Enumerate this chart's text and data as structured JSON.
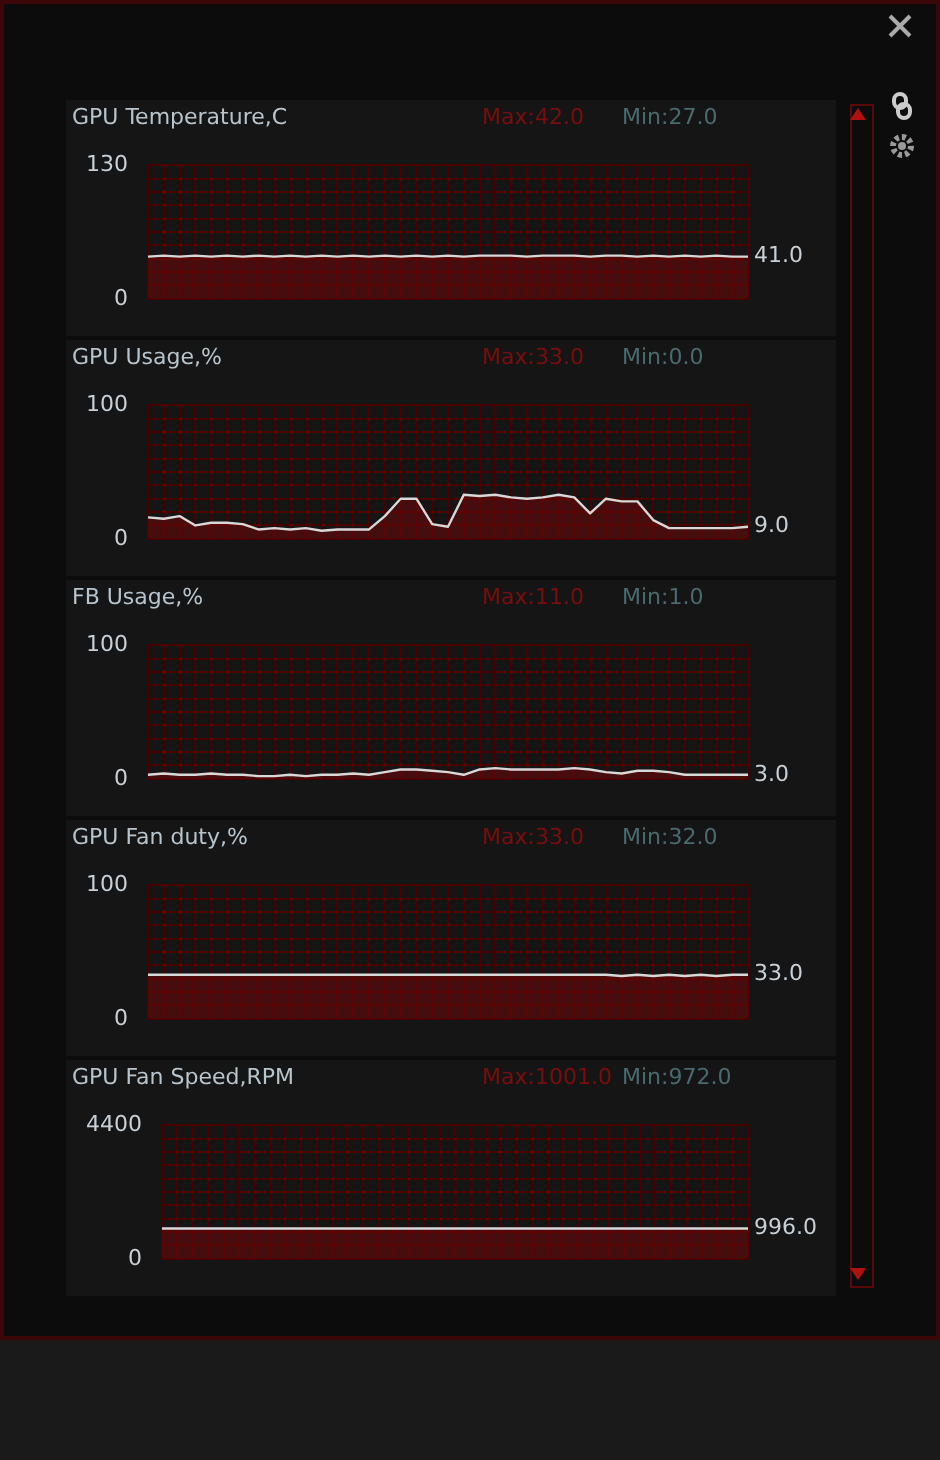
{
  "chart_data": [
    {
      "type": "area",
      "title": "GPU Temperature,C",
      "annotations": [
        "Max:42.0",
        "Min:27.0",
        "41.0"
      ],
      "categories": [
        null,
        null,
        null,
        null,
        null,
        null,
        null,
        null,
        null,
        null,
        null,
        null,
        null,
        null,
        null,
        null,
        null,
        null,
        null,
        null,
        null,
        null,
        null,
        null,
        null,
        null,
        null,
        null,
        null,
        null,
        null,
        null,
        null,
        null,
        null,
        null,
        null,
        null,
        null
      ],
      "series": [
        {
          "color": "#d8d8d8",
          "values": [
            41,
            42,
            41,
            42,
            41,
            42,
            41,
            42,
            41,
            42,
            41,
            42,
            41,
            42,
            41,
            42,
            41,
            42,
            41,
            42,
            41,
            42,
            42,
            42,
            41,
            42,
            42,
            42,
            41,
            42,
            42,
            41,
            42,
            41,
            42,
            41,
            42,
            41,
            41
          ]
        }
      ],
      "ylim": [
        0,
        130
      ],
      "yticks": [
        0,
        {
          "value": 13,
          "label": null
        },
        {
          "value": 26,
          "label": null
        },
        {
          "value": 39,
          "label": null
        },
        {
          "value": 52,
          "label": null
        },
        {
          "value": 65,
          "label": null
        },
        {
          "value": 78,
          "label": null
        },
        {
          "value": 91,
          "label": null
        },
        {
          "value": 104,
          "label": null
        },
        {
          "value": 117,
          "label": null
        },
        130
      ],
      "grid": true,
      "tick_labels": "y"
    },
    {
      "type": "area",
      "title": "GPU Usage,%",
      "annotations": [
        "Max:33.0",
        "Min:0.0",
        "9.0"
      ],
      "categories": [
        null,
        null,
        null,
        null,
        null,
        null,
        null,
        null,
        null,
        null,
        null,
        null,
        null,
        null,
        null,
        null,
        null,
        null,
        null,
        null,
        null,
        null,
        null,
        null,
        null,
        null,
        null,
        null,
        null,
        null,
        null,
        null,
        null,
        null,
        null,
        null,
        null,
        null,
        null
      ],
      "series": [
        {
          "color": "#d8d8d8",
          "values": [
            16,
            15,
            17,
            10,
            12,
            12,
            11,
            7,
            8,
            7,
            8,
            6,
            7,
            7,
            7,
            17,
            30,
            30,
            11,
            9,
            33,
            32,
            33,
            31,
            30,
            31,
            33,
            31,
            19,
            30,
            28,
            28,
            14,
            8,
            8,
            8,
            8,
            8,
            9
          ]
        }
      ],
      "ylim": [
        0,
        100
      ],
      "yticks": [
        0,
        {
          "value": 10,
          "label": null
        },
        {
          "value": 20,
          "label": null
        },
        {
          "value": 30,
          "label": null
        },
        {
          "value": 40,
          "label": null
        },
        {
          "value": 50,
          "label": null
        },
        {
          "value": 60,
          "label": null
        },
        {
          "value": 70,
          "label": null
        },
        {
          "value": 80,
          "label": null
        },
        {
          "value": 90,
          "label": null
        },
        100
      ],
      "grid": true,
      "tick_labels": "y"
    },
    {
      "type": "area",
      "title": "FB Usage,%",
      "annotations": [
        "Max:11.0",
        "Min:1.0",
        "3.0"
      ],
      "categories": [
        null,
        null,
        null,
        null,
        null,
        null,
        null,
        null,
        null,
        null,
        null,
        null,
        null,
        null,
        null,
        null,
        null,
        null,
        null,
        null,
        null,
        null,
        null,
        null,
        null,
        null,
        null,
        null,
        null,
        null,
        null,
        null,
        null,
        null,
        null,
        null,
        null,
        null,
        null
      ],
      "series": [
        {
          "color": "#d8d8d8",
          "values": [
            3,
            4,
            3,
            3,
            4,
            3,
            3,
            2,
            2,
            3,
            2,
            3,
            3,
            4,
            3,
            5,
            7,
            7,
            6,
            5,
            3,
            7,
            8,
            7,
            7,
            7,
            7,
            8,
            7,
            5,
            4,
            6,
            6,
            5,
            3,
            3,
            3,
            3,
            3
          ]
        }
      ],
      "ylim": [
        0,
        100
      ],
      "yticks": [
        0,
        {
          "value": 10,
          "label": null
        },
        {
          "value": 20,
          "label": null
        },
        {
          "value": 30,
          "label": null
        },
        {
          "value": 40,
          "label": null
        },
        {
          "value": 50,
          "label": null
        },
        {
          "value": 60,
          "label": null
        },
        {
          "value": 70,
          "label": null
        },
        {
          "value": 80,
          "label": null
        },
        {
          "value": 90,
          "label": null
        },
        100
      ],
      "grid": true,
      "tick_labels": "y"
    },
    {
      "type": "area",
      "title": "GPU Fan duty,%",
      "annotations": [
        "Max:33.0",
        "Min:32.0",
        "33.0"
      ],
      "categories": [
        null,
        null,
        null,
        null,
        null,
        null,
        null,
        null,
        null,
        null,
        null,
        null,
        null,
        null,
        null,
        null,
        null,
        null,
        null,
        null,
        null,
        null,
        null,
        null,
        null,
        null,
        null,
        null,
        null,
        null,
        null,
        null,
        null,
        null,
        null,
        null,
        null,
        null,
        null
      ],
      "series": [
        {
          "color": "#d8d8d8",
          "values": [
            33,
            33,
            33,
            33,
            33,
            33,
            33,
            33,
            33,
            33,
            33,
            33,
            33,
            33,
            33,
            33,
            33,
            33,
            33,
            33,
            33,
            33,
            33,
            33,
            33,
            33,
            33,
            33,
            33,
            33,
            32,
            33,
            32,
            33,
            32,
            33,
            32,
            33,
            33
          ]
        }
      ],
      "ylim": [
        0,
        100
      ],
      "yticks": [
        0,
        {
          "value": 10,
          "label": null
        },
        {
          "value": 20,
          "label": null
        },
        {
          "value": 30,
          "label": null
        },
        {
          "value": 40,
          "label": null
        },
        {
          "value": 50,
          "label": null
        },
        {
          "value": 60,
          "label": null
        },
        {
          "value": 70,
          "label": null
        },
        {
          "value": 80,
          "label": null
        },
        {
          "value": 90,
          "label": null
        },
        100
      ],
      "grid": true,
      "tick_labels": "y"
    },
    {
      "type": "area",
      "title": "GPU Fan Speed,RPM",
      "annotations": [
        "Max:1001.0",
        "Min:972.0",
        "996.0"
      ],
      "categories": [
        null,
        null,
        null,
        null,
        null,
        null,
        null,
        null,
        null,
        null,
        null,
        null,
        null,
        null,
        null,
        null,
        null,
        null,
        null,
        null,
        null,
        null,
        null,
        null,
        null,
        null,
        null,
        null,
        null,
        null,
        null,
        null,
        null,
        null,
        null,
        null,
        null,
        null,
        null
      ],
      "series": [
        {
          "color": "#d8d8d8",
          "values": [
            1000,
            1000,
            1000,
            1000,
            1000,
            1000,
            1000,
            1000,
            1000,
            1000,
            1000,
            1000,
            1000,
            1000,
            1000,
            1000,
            1000,
            1000,
            1000,
            1000,
            1000,
            1000,
            1000,
            1000,
            1000,
            1000,
            1000,
            1000,
            1000,
            1000,
            1000,
            1000,
            1000,
            1000,
            1000,
            1000,
            1000,
            1000,
            1000
          ]
        }
      ],
      "ylim": [
        0,
        4400
      ],
      "yticks": [
        0,
        {
          "value": 440,
          "label": null
        },
        {
          "value": 880,
          "label": null
        },
        {
          "value": 1320,
          "label": null
        },
        {
          "value": 1760,
          "label": null
        },
        {
          "value": 2200,
          "label": null
        },
        {
          "value": 2640,
          "label": null
        },
        {
          "value": 3080,
          "label": null
        },
        {
          "value": 3520,
          "label": null
        },
        {
          "value": 3960,
          "label": null
        },
        4400
      ],
      "grid": true,
      "tick_labels": "y"
    }
  ]
}
